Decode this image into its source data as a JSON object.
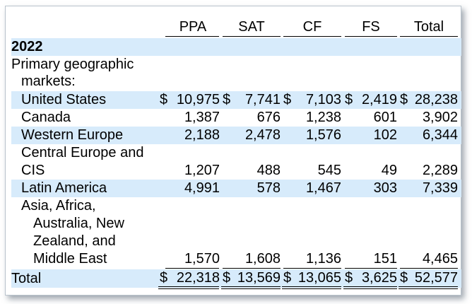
{
  "table": {
    "columns": [
      "PPA",
      "SAT",
      "CF",
      "FS",
      "Total"
    ],
    "year": "2022",
    "section_label_line1": "Primary geographic",
    "section_label_line2": "markets:",
    "rows": [
      {
        "label": "United States",
        "ppa_dollar": "$",
        "ppa": "10,975",
        "sat_dollar": "$",
        "sat": "7,741",
        "cf_dollar": "$",
        "cf": "7,103",
        "fs_dollar": "$",
        "fs": "2,419",
        "total_dollar": "$",
        "total": "28,238"
      },
      {
        "label": "Canada",
        "ppa": "1,387",
        "sat": "676",
        "cf": "1,238",
        "fs": "601",
        "total": "3,902"
      },
      {
        "label": "Western Europe",
        "ppa": "2,188",
        "sat": "2,478",
        "cf": "1,576",
        "fs": "102",
        "total": "6,344"
      },
      {
        "label_line1": "Central Europe and",
        "label_line2": "CIS",
        "ppa": "1,207",
        "sat": "488",
        "cf": "545",
        "fs": "49",
        "total": "2,289"
      },
      {
        "label": "Latin America",
        "ppa": "4,991",
        "sat": "578",
        "cf": "1,467",
        "fs": "303",
        "total": "7,339"
      },
      {
        "label_line1": "Asia, Africa,",
        "label_line2": "Australia, New",
        "label_line3": "Zealand, and",
        "label_line4": "Middle East",
        "ppa": "1,570",
        "sat": "1,608",
        "cf": "1,136",
        "fs": "151",
        "total": "4,465"
      }
    ],
    "total_row": {
      "label": "Total",
      "ppa_dollar": "$",
      "ppa": "22,318",
      "sat_dollar": "$",
      "sat": "13,569",
      "cf_dollar": "$",
      "cf": "13,065",
      "fs_dollar": "$",
      "fs": "3,625",
      "total_dollar": "$",
      "total": "52,577"
    }
  },
  "colors": {
    "band": "#d7ebfb",
    "border": "#b9c3cc"
  }
}
